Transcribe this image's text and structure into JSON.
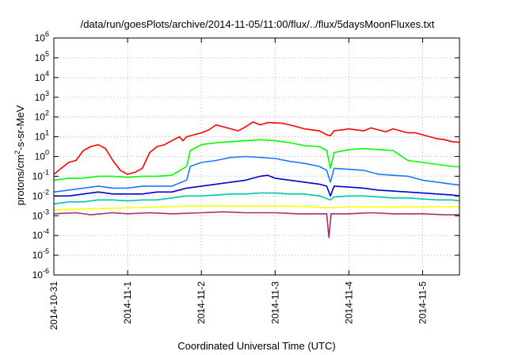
{
  "chart_data": {
    "type": "line",
    "title": "/data/run/goesPlots/archive/2014-11-05/11:00/flux/../flux/5daysMoonFluxes.txt",
    "xlabel": "Coordinated Universal Time (UTC)",
    "ylabel": "protons/cm2-s-sr-MeV",
    "ylabel_parts": {
      "pre": "protons/cm",
      "sup": "2",
      "post": "-s-sr-MeV"
    },
    "yscale": "log",
    "ylim_exp": [
      -6,
      6
    ],
    "x_range": [
      0,
      5.5
    ],
    "x_unit": "days since 2014-10-31 00:00 UTC",
    "x_ticks": [
      {
        "x": 0,
        "label": "2014-10-31"
      },
      {
        "x": 1,
        "label": "2014-11-1"
      },
      {
        "x": 2,
        "label": "2014-11-2"
      },
      {
        "x": 3,
        "label": "2014-11-3"
      },
      {
        "x": 4,
        "label": "2014-11-4"
      },
      {
        "x": 5,
        "label": "2014-11-5"
      }
    ],
    "y_ticks": [
      {
        "exp": 6,
        "base": "10",
        "sup": "6"
      },
      {
        "exp": 5,
        "base": "10",
        "sup": "5"
      },
      {
        "exp": 4,
        "base": "10",
        "sup": "4"
      },
      {
        "exp": 3,
        "base": "10",
        "sup": "3"
      },
      {
        "exp": 2,
        "base": "10",
        "sup": "2"
      },
      {
        "exp": 1,
        "base": "10",
        "sup": "1"
      },
      {
        "exp": 0,
        "base": "10",
        "sup": "0"
      },
      {
        "exp": -1,
        "base": "10",
        "sup": "-1"
      },
      {
        "exp": -2,
        "base": "10",
        "sup": "-2"
      },
      {
        "exp": -3,
        "base": "10",
        "sup": "-3"
      },
      {
        "exp": -4,
        "base": "10",
        "sup": "-4"
      },
      {
        "exp": -5,
        "base": "10",
        "sup": "-5"
      },
      {
        "exp": -6,
        "base": "10",
        "sup": "-6"
      }
    ],
    "grid": true,
    "series": [
      {
        "color": "#ff0000",
        "points": [
          [
            0,
            -0.9
          ],
          [
            0.1,
            -0.6
          ],
          [
            0.2,
            -0.3
          ],
          [
            0.3,
            -0.2
          ],
          [
            0.4,
            0.3
          ],
          [
            0.5,
            0.5
          ],
          [
            0.6,
            0.6
          ],
          [
            0.7,
            0.4
          ],
          [
            0.8,
            -0.2
          ],
          [
            0.9,
            -0.7
          ],
          [
            1.0,
            -0.9
          ],
          [
            1.1,
            -0.8
          ],
          [
            1.2,
            -0.6
          ],
          [
            1.3,
            0.2
          ],
          [
            1.4,
            0.5
          ],
          [
            1.5,
            0.6
          ],
          [
            1.6,
            0.8
          ],
          [
            1.7,
            1.0
          ],
          [
            1.75,
            0.8
          ],
          [
            1.8,
            1.0
          ],
          [
            1.9,
            1.1
          ],
          [
            2.0,
            1.2
          ],
          [
            2.1,
            1.35
          ],
          [
            2.2,
            1.6
          ],
          [
            2.3,
            1.5
          ],
          [
            2.4,
            1.4
          ],
          [
            2.5,
            1.3
          ],
          [
            2.6,
            1.5
          ],
          [
            2.7,
            1.75
          ],
          [
            2.8,
            1.6
          ],
          [
            2.9,
            1.72
          ],
          [
            3.0,
            1.7
          ],
          [
            3.1,
            1.68
          ],
          [
            3.2,
            1.6
          ],
          [
            3.3,
            1.5
          ],
          [
            3.4,
            1.4
          ],
          [
            3.5,
            1.35
          ],
          [
            3.6,
            1.3
          ],
          [
            3.7,
            1.1
          ],
          [
            3.75,
            1.05
          ],
          [
            3.8,
            1.3
          ],
          [
            3.9,
            1.35
          ],
          [
            4.0,
            1.4
          ],
          [
            4.1,
            1.35
          ],
          [
            4.2,
            1.3
          ],
          [
            4.3,
            1.45
          ],
          [
            4.4,
            1.35
          ],
          [
            4.5,
            1.25
          ],
          [
            4.6,
            1.4
          ],
          [
            4.7,
            1.3
          ],
          [
            4.8,
            1.2
          ],
          [
            4.9,
            1.2
          ],
          [
            5.0,
            1.1
          ],
          [
            5.1,
            1.0
          ],
          [
            5.2,
            0.9
          ],
          [
            5.3,
            0.85
          ],
          [
            5.4,
            0.75
          ],
          [
            5.5,
            0.72
          ]
        ]
      },
      {
        "color": "#00ff00",
        "points": [
          [
            0,
            -1.2
          ],
          [
            0.2,
            -1.1
          ],
          [
            0.4,
            -1.1
          ],
          [
            0.6,
            -1.0
          ],
          [
            0.8,
            -1.0
          ],
          [
            1.0,
            -1.05
          ],
          [
            1.2,
            -1.0
          ],
          [
            1.4,
            -1.0
          ],
          [
            1.6,
            -0.95
          ],
          [
            1.8,
            -0.5
          ],
          [
            1.85,
            0.3
          ],
          [
            2.0,
            0.6
          ],
          [
            2.2,
            0.7
          ],
          [
            2.4,
            0.75
          ],
          [
            2.6,
            0.8
          ],
          [
            2.8,
            0.85
          ],
          [
            3.0,
            0.8
          ],
          [
            3.2,
            0.7
          ],
          [
            3.4,
            0.55
          ],
          [
            3.6,
            0.5
          ],
          [
            3.7,
            0.3
          ],
          [
            3.75,
            -0.6
          ],
          [
            3.8,
            0.2
          ],
          [
            4.0,
            0.35
          ],
          [
            4.2,
            0.4
          ],
          [
            4.4,
            0.35
          ],
          [
            4.6,
            0.3
          ],
          [
            4.8,
            -0.2
          ],
          [
            5.0,
            -0.3
          ],
          [
            5.2,
            -0.4
          ],
          [
            5.4,
            -0.5
          ],
          [
            5.5,
            -0.52
          ]
        ]
      },
      {
        "color": "#1e78ff",
        "points": [
          [
            0,
            -1.8
          ],
          [
            0.2,
            -1.7
          ],
          [
            0.4,
            -1.6
          ],
          [
            0.6,
            -1.5
          ],
          [
            0.8,
            -1.6
          ],
          [
            1.0,
            -1.6
          ],
          [
            1.2,
            -1.5
          ],
          [
            1.4,
            -1.5
          ],
          [
            1.6,
            -1.5
          ],
          [
            1.8,
            -1.2
          ],
          [
            1.85,
            -0.5
          ],
          [
            2.0,
            -0.3
          ],
          [
            2.2,
            -0.2
          ],
          [
            2.4,
            -0.05
          ],
          [
            2.6,
            0.0
          ],
          [
            2.8,
            -0.05
          ],
          [
            3.0,
            -0.1
          ],
          [
            3.2,
            -0.25
          ],
          [
            3.4,
            -0.35
          ],
          [
            3.6,
            -0.5
          ],
          [
            3.7,
            -0.7
          ],
          [
            3.75,
            -1.3
          ],
          [
            3.8,
            -0.6
          ],
          [
            4.0,
            -0.65
          ],
          [
            4.2,
            -0.7
          ],
          [
            4.4,
            -0.9
          ],
          [
            4.6,
            -0.95
          ],
          [
            4.8,
            -1.0
          ],
          [
            5.0,
            -1.2
          ],
          [
            5.2,
            -1.3
          ],
          [
            5.4,
            -1.4
          ],
          [
            5.5,
            -1.45
          ]
        ]
      },
      {
        "color": "#0000d0",
        "points": [
          [
            0,
            -2.0
          ],
          [
            0.2,
            -2.0
          ],
          [
            0.4,
            -1.9
          ],
          [
            0.6,
            -1.8
          ],
          [
            0.8,
            -1.9
          ],
          [
            1.0,
            -1.9
          ],
          [
            1.2,
            -1.9
          ],
          [
            1.4,
            -1.8
          ],
          [
            1.6,
            -1.8
          ],
          [
            1.8,
            -1.6
          ],
          [
            2.0,
            -1.5
          ],
          [
            2.2,
            -1.4
          ],
          [
            2.4,
            -1.3
          ],
          [
            2.6,
            -1.2
          ],
          [
            2.8,
            -1.0
          ],
          [
            2.9,
            -0.95
          ],
          [
            3.0,
            -1.1
          ],
          [
            3.2,
            -1.2
          ],
          [
            3.4,
            -1.3
          ],
          [
            3.6,
            -1.4
          ],
          [
            3.7,
            -1.5
          ],
          [
            3.75,
            -2.0
          ],
          [
            3.8,
            -1.5
          ],
          [
            4.0,
            -1.55
          ],
          [
            4.2,
            -1.6
          ],
          [
            4.4,
            -1.7
          ],
          [
            4.6,
            -1.75
          ],
          [
            4.8,
            -1.8
          ],
          [
            5.0,
            -1.85
          ],
          [
            5.2,
            -1.9
          ],
          [
            5.4,
            -1.95
          ],
          [
            5.5,
            -2.0
          ]
        ]
      },
      {
        "color": "#00c8a0",
        "points": [
          [
            0,
            -2.4
          ],
          [
            0.2,
            -2.3
          ],
          [
            0.4,
            -2.3
          ],
          [
            0.6,
            -2.2
          ],
          [
            0.8,
            -2.2
          ],
          [
            1.0,
            -2.25
          ],
          [
            1.2,
            -2.2
          ],
          [
            1.4,
            -2.2
          ],
          [
            1.6,
            -2.1
          ],
          [
            1.8,
            -2.0
          ],
          [
            2.0,
            -2.0
          ],
          [
            2.2,
            -1.95
          ],
          [
            2.4,
            -1.9
          ],
          [
            2.6,
            -1.9
          ],
          [
            2.8,
            -1.85
          ],
          [
            3.0,
            -1.85
          ],
          [
            3.2,
            -1.9
          ],
          [
            3.4,
            -1.9
          ],
          [
            3.6,
            -2.0
          ],
          [
            3.75,
            -2.2
          ],
          [
            3.8,
            -2.05
          ],
          [
            4.0,
            -2.0
          ],
          [
            4.2,
            -2.0
          ],
          [
            4.4,
            -2.05
          ],
          [
            4.6,
            -2.1
          ],
          [
            4.8,
            -2.1
          ],
          [
            5.0,
            -2.15
          ],
          [
            5.2,
            -2.2
          ],
          [
            5.4,
            -2.2
          ],
          [
            5.5,
            -2.25
          ]
        ]
      },
      {
        "color": "#ffff00",
        "points": [
          [
            0,
            -2.7
          ],
          [
            0.5,
            -2.65
          ],
          [
            1.0,
            -2.6
          ],
          [
            1.5,
            -2.55
          ],
          [
            2.0,
            -2.5
          ],
          [
            2.5,
            -2.5
          ],
          [
            3.0,
            -2.5
          ],
          [
            3.5,
            -2.55
          ],
          [
            3.75,
            -2.6
          ],
          [
            4.0,
            -2.55
          ],
          [
            4.5,
            -2.55
          ],
          [
            5.0,
            -2.55
          ],
          [
            5.5,
            -2.55
          ]
        ]
      },
      {
        "color": "#a0306a",
        "points": [
          [
            0,
            -2.9
          ],
          [
            0.3,
            -2.85
          ],
          [
            0.5,
            -2.95
          ],
          [
            0.8,
            -2.85
          ],
          [
            1.0,
            -2.9
          ],
          [
            1.3,
            -2.85
          ],
          [
            1.6,
            -2.9
          ],
          [
            2.0,
            -2.85
          ],
          [
            2.3,
            -2.8
          ],
          [
            2.6,
            -2.85
          ],
          [
            3.0,
            -2.85
          ],
          [
            3.3,
            -2.9
          ],
          [
            3.6,
            -2.9
          ],
          [
            3.7,
            -2.9
          ],
          [
            3.73,
            -4.1
          ],
          [
            3.76,
            -2.9
          ],
          [
            4.0,
            -2.9
          ],
          [
            4.3,
            -2.85
          ],
          [
            4.6,
            -2.9
          ],
          [
            5.0,
            -2.9
          ],
          [
            5.3,
            -2.95
          ],
          [
            5.5,
            -2.95
          ]
        ]
      }
    ]
  }
}
